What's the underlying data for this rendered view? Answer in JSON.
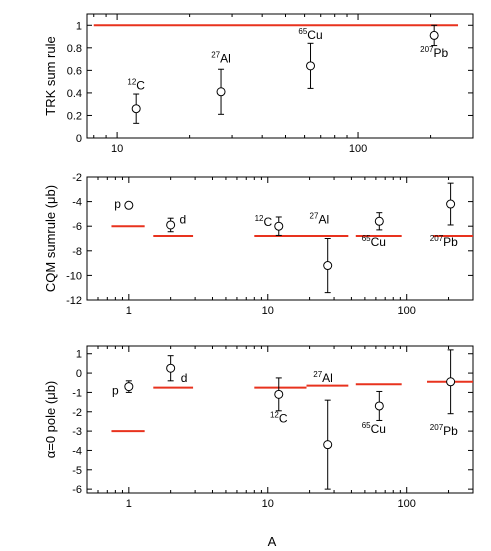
{
  "colors": {
    "reference": "#e8321e",
    "marker": "#000000"
  },
  "xlabel": "A",
  "chart_data": [
    {
      "type": "scatter",
      "ylabel": "TRK sum rule",
      "xscale": "log",
      "xlim": [
        7.5,
        300
      ],
      "ylim": [
        0,
        1.1
      ],
      "yticks": [
        0,
        0.2,
        0.4,
        0.6,
        0.8,
        1
      ],
      "ytick_labels": [
        "0",
        "0.2",
        "0.4",
        "0.6",
        "0.8",
        "1"
      ],
      "xticks": [
        10,
        100
      ],
      "xtick_labels": [
        "10",
        "100"
      ],
      "show_xtick_labels": true,
      "points": [
        {
          "x": 12,
          "y": 0.26,
          "err": 0.13
        },
        {
          "x": 27,
          "y": 0.41,
          "err": 0.2
        },
        {
          "x": 63.5,
          "y": 0.64,
          "err": 0.2
        },
        {
          "x": 207,
          "y": 0.91,
          "err": 0.09
        }
      ],
      "reference_lines": [
        {
          "x0": 8,
          "x1": 260,
          "y": 1.0
        }
      ],
      "annotations": [
        {
          "sup": "12",
          "text": "C",
          "x": 12,
          "y": 0.43
        },
        {
          "sup": "27",
          "text": "Al",
          "x": 27,
          "y": 0.67
        },
        {
          "sup": "65",
          "text": "Cu",
          "x": 63.5,
          "y": 0.88
        },
        {
          "sup": "207",
          "text": "Pb",
          "x": 207,
          "y": 0.72
        }
      ]
    },
    {
      "type": "scatter",
      "ylabel": "CQM sumrule (μb)",
      "xscale": "log",
      "xlim": [
        0.5,
        300
      ],
      "ylim": [
        -12,
        -2
      ],
      "yticks": [
        -12,
        -10,
        -8,
        -6,
        -4,
        -2
      ],
      "ytick_labels": [
        "-12",
        "-10",
        "-8",
        "-6",
        "-4",
        "-2"
      ],
      "xticks": [
        1,
        10,
        100
      ],
      "xtick_labels": [
        "1",
        "10",
        "100"
      ],
      "show_xtick_labels": true,
      "points": [
        {
          "x": 1,
          "y": -4.3,
          "err": 0.2
        },
        {
          "x": 2,
          "y": -5.9,
          "err": 0.55
        },
        {
          "x": 12,
          "y": -6.0,
          "err": 0.75
        },
        {
          "x": 27,
          "y": -9.2,
          "err": 2.2
        },
        {
          "x": 63.5,
          "y": -5.6,
          "err": 0.7
        },
        {
          "x": 207,
          "y": -4.2,
          "err": 1.7
        }
      ],
      "reference_lines": [
        {
          "x0": 0.75,
          "x1": 1.3,
          "y": -6.0
        },
        {
          "x0": 1.5,
          "x1": 2.9,
          "y": -6.8
        },
        {
          "x0": 8,
          "x1": 19,
          "y": -6.8
        },
        {
          "x0": 19,
          "x1": 38,
          "y": -6.8
        },
        {
          "x0": 43,
          "x1": 92,
          "y": -6.8
        },
        {
          "x0": 155,
          "x1": 300,
          "y": -6.8
        }
      ],
      "annotations": [
        {
          "sup": "",
          "text": "p",
          "x": 0.83,
          "y": -4.5
        },
        {
          "sup": "",
          "text": "d",
          "x": 2.45,
          "y": -5.8
        },
        {
          "sup": "12",
          "text": "C",
          "x": 9.3,
          "y": -6.0
        },
        {
          "sup": "27",
          "text": "Al",
          "x": 23.5,
          "y": -5.8
        },
        {
          "sup": "65",
          "text": "Cu",
          "x": 58,
          "y": -7.6
        },
        {
          "sup": "207",
          "text": "Pb",
          "x": 185,
          "y": -7.6
        }
      ]
    },
    {
      "type": "scatter",
      "ylabel": "α=0 pole (μb)",
      "xscale": "log",
      "xlim": [
        0.5,
        300
      ],
      "ylim": [
        -6.2,
        1.4
      ],
      "yticks": [
        -6,
        -5,
        -4,
        -3,
        -2,
        -1,
        0,
        1
      ],
      "ytick_labels": [
        "-6",
        "-5",
        "-4",
        "-3",
        "-2",
        "-1",
        "0",
        "1"
      ],
      "xticks": [
        1,
        10,
        100
      ],
      "xtick_labels": [
        "1",
        "10",
        "100"
      ],
      "show_xtick_labels": true,
      "points": [
        {
          "x": 1,
          "y": -0.7,
          "err": 0.3
        },
        {
          "x": 2,
          "y": 0.25,
          "err": 0.65
        },
        {
          "x": 12,
          "y": -1.1,
          "err": 0.85
        },
        {
          "x": 27,
          "y": -3.7,
          "err": 2.3
        },
        {
          "x": 63.5,
          "y": -1.7,
          "err": 0.75
        },
        {
          "x": 207,
          "y": -0.45,
          "err": 1.65
        }
      ],
      "reference_lines": [
        {
          "x0": 0.75,
          "x1": 1.3,
          "y": -3.0
        },
        {
          "x0": 1.5,
          "x1": 2.9,
          "y": -0.75
        },
        {
          "x0": 8,
          "x1": 19,
          "y": -0.75
        },
        {
          "x0": 19,
          "x1": 38,
          "y": -0.65
        },
        {
          "x0": 43,
          "x1": 92,
          "y": -0.58
        },
        {
          "x0": 140,
          "x1": 300,
          "y": -0.45
        }
      ],
      "annotations": [
        {
          "sup": "",
          "text": "p",
          "x": 0.8,
          "y": -1.1
        },
        {
          "sup": "",
          "text": "d",
          "x": 2.5,
          "y": -0.45
        },
        {
          "sup": "12",
          "text": "C",
          "x": 12,
          "y": -2.55
        },
        {
          "sup": "27",
          "text": "Al",
          "x": 25,
          "y": -0.45
        },
        {
          "sup": "65",
          "text": "Cu",
          "x": 58,
          "y": -3.1
        },
        {
          "sup": "207",
          "text": "Pb",
          "x": 185,
          "y": -3.2
        }
      ]
    }
  ]
}
